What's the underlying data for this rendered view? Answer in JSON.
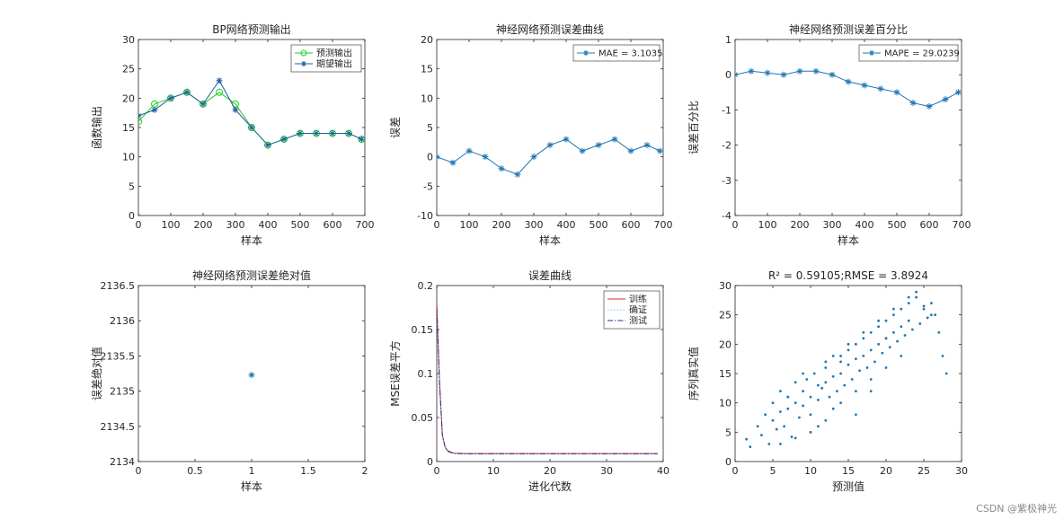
{
  "watermark": "CSDN @紫极神光",
  "chart_data": [
    {
      "type": "line",
      "title": "BP网络预测输出",
      "xlabel": "样本",
      "ylabel": "函数输出",
      "xlim": [
        0,
        700
      ],
      "ylim": [
        0,
        30
      ],
      "xticks": [
        "0",
        "100",
        "200",
        "300",
        "400",
        "500",
        "600",
        "700"
      ],
      "yticks": [
        "0",
        "5",
        "10",
        "15",
        "20",
        "25",
        "30"
      ],
      "legend": "top-right",
      "series": [
        {
          "name": "预测输出",
          "color": "#22cc22",
          "marker": "circle",
          "x": [
            0,
            50,
            100,
            150,
            200,
            250,
            300,
            350,
            400,
            450,
            500,
            550,
            600,
            650,
            690
          ],
          "y": [
            16,
            19,
            20,
            21,
            19,
            21,
            19,
            15,
            12,
            13,
            14,
            14,
            14,
            14,
            13
          ]
        },
        {
          "name": "期望输出",
          "color": "#1f5fa0",
          "marker": "star",
          "x": [
            0,
            50,
            100,
            150,
            200,
            250,
            300,
            350,
            400,
            450,
            500,
            550,
            600,
            650,
            690
          ],
          "y": [
            17,
            18,
            20,
            21,
            19,
            23,
            18,
            15,
            12,
            13,
            14,
            14,
            14,
            14,
            13
          ]
        }
      ]
    },
    {
      "type": "line",
      "title": "神经网络预测误差曲线",
      "xlabel": "样本",
      "ylabel": "误差",
      "xlim": [
        0,
        700
      ],
      "ylim": [
        -10,
        20
      ],
      "xticks": [
        "0",
        "100",
        "200",
        "300",
        "400",
        "500",
        "600",
        "700"
      ],
      "yticks": [
        "-10",
        "-5",
        "0",
        "5",
        "10",
        "15",
        "20"
      ],
      "legend": "top-right",
      "series": [
        {
          "name": "MAE = 3.1035",
          "color": "#1f77b4",
          "marker": "star",
          "x": [
            0,
            50,
            100,
            150,
            200,
            250,
            300,
            350,
            400,
            450,
            500,
            550,
            600,
            650,
            690
          ],
          "y": [
            0,
            -1,
            1,
            0,
            -2,
            -3,
            0,
            2,
            3,
            1,
            2,
            3,
            1,
            2,
            1
          ]
        }
      ]
    },
    {
      "type": "line",
      "title": "神经网络预测误差百分比",
      "xlabel": "样本",
      "ylabel": "误差百分比",
      "xlim": [
        0,
        700
      ],
      "ylim": [
        -4,
        1
      ],
      "xticks": [
        "0",
        "100",
        "200",
        "300",
        "400",
        "500",
        "600",
        "700"
      ],
      "yticks": [
        "-4",
        "-3",
        "-2",
        "-1",
        "0",
        "1"
      ],
      "legend": "top-right",
      "series": [
        {
          "name": "MAPE = 29.0239",
          "color": "#1f77b4",
          "marker": "star",
          "x": [
            0,
            50,
            100,
            150,
            200,
            250,
            300,
            350,
            400,
            450,
            500,
            550,
            600,
            650,
            690
          ],
          "y": [
            0,
            0.1,
            0.05,
            0,
            0.1,
            0.1,
            0,
            -0.2,
            -0.3,
            -0.4,
            -0.5,
            -0.8,
            -0.9,
            -0.7,
            -0.5
          ]
        }
      ]
    },
    {
      "type": "scatter",
      "title": "神经网络预测误差绝对值",
      "xlabel": "样本",
      "ylabel": "误差绝对值",
      "xlim": [
        0,
        2
      ],
      "ylim": [
        2134,
        2136.5
      ],
      "xticks": [
        "0",
        "0.5",
        "1",
        "1.5",
        "2"
      ],
      "yticks": [
        "2134",
        "2134.5",
        "2135",
        "2135.5",
        "2136",
        "2136.5"
      ],
      "series": [
        {
          "color": "#1f77b4",
          "marker": "star",
          "x": [
            1
          ],
          "y": [
            2135.23
          ]
        }
      ]
    },
    {
      "type": "line",
      "title": "误差曲线",
      "xlabel": "进化代数",
      "ylabel": "MSE误差平方",
      "xlim": [
        0,
        40
      ],
      "ylim": [
        0,
        0.2
      ],
      "xticks": [
        "0",
        "10",
        "20",
        "30",
        "40"
      ],
      "yticks": [
        "0",
        "0.05",
        "0.1",
        "0.15",
        "0.2"
      ],
      "legend": "top-right",
      "series": [
        {
          "name": "训练",
          "color": "#d62728",
          "dash": "solid",
          "x": [
            0,
            0.5,
            1,
            1.5,
            2,
            3,
            5,
            10,
            15,
            20,
            25,
            30,
            35,
            39
          ],
          "y": [
            0.18,
            0.09,
            0.03,
            0.016,
            0.012,
            0.0095,
            0.009,
            0.009,
            0.009,
            0.009,
            0.009,
            0.009,
            0.009,
            0.009
          ]
        },
        {
          "name": "确证",
          "color": "#7fbfff",
          "dash": "dotted",
          "x": [
            0,
            0.5,
            1,
            1.5,
            2,
            3,
            5,
            10,
            15,
            20,
            25,
            30,
            35,
            39
          ],
          "y": [
            0.17,
            0.085,
            0.028,
            0.015,
            0.011,
            0.009,
            0.0085,
            0.0085,
            0.0085,
            0.0085,
            0.0085,
            0.0085,
            0.0085,
            0.0085
          ]
        },
        {
          "name": "测试",
          "color": "#3a2a80",
          "dash": "dashdot",
          "x": [
            0,
            0.5,
            1,
            1.5,
            2,
            3,
            5,
            10,
            15,
            20,
            25,
            30,
            35,
            39
          ],
          "y": [
            0.175,
            0.088,
            0.029,
            0.016,
            0.0115,
            0.0092,
            0.0088,
            0.0088,
            0.0088,
            0.0088,
            0.0088,
            0.0088,
            0.0088,
            0.0088
          ]
        }
      ]
    },
    {
      "type": "scatter",
      "title": "R² = 0.59105;RMSE = 3.8924",
      "xlabel": "预测值",
      "ylabel": "序列真实值",
      "xlim": [
        0,
        30
      ],
      "ylim": [
        0,
        30
      ],
      "xticks": [
        "0",
        "5",
        "10",
        "15",
        "20",
        "25",
        "30"
      ],
      "yticks": [
        "0",
        "5",
        "10",
        "15",
        "20",
        "25",
        "30"
      ],
      "series": [
        {
          "color": "#1f77b4",
          "marker": "dot",
          "x": [
            1.5,
            2,
            3,
            3.5,
            4,
            4.5,
            5,
            5,
            5.5,
            6,
            6,
            6.5,
            7,
            7,
            7.5,
            8,
            8,
            8.5,
            9,
            9,
            9.5,
            10,
            10,
            10.5,
            11,
            11,
            11.5,
            12,
            12,
            12.5,
            13,
            13,
            13.5,
            14,
            14,
            14.5,
            15,
            15,
            15.5,
            16,
            16,
            16.5,
            17,
            17,
            17.5,
            18,
            18,
            18.5,
            19,
            19,
            19.5,
            20,
            20,
            20.5,
            21,
            21,
            21.5,
            22,
            22,
            22.5,
            23,
            23,
            23.5,
            24,
            24.5,
            25,
            25.5,
            26,
            26.5,
            27,
            27.5,
            28,
            12,
            14,
            16,
            18,
            20,
            22,
            10,
            8,
            6,
            15,
            17,
            19,
            21,
            13,
            11,
            9,
            7,
            24,
            26,
            23,
            25,
            16,
            18,
            14,
            12,
            20
          ],
          "y": [
            3.8,
            2.5,
            6,
            4.5,
            8,
            3,
            10,
            7,
            5.5,
            12,
            8.5,
            6,
            11,
            9,
            4.2,
            13.5,
            10,
            7.5,
            12,
            9.5,
            14,
            11,
            8,
            15,
            13,
            10.5,
            12.5,
            16,
            13.5,
            11,
            18,
            14.5,
            12,
            17,
            15,
            13,
            19,
            16.5,
            14,
            20,
            17.5,
            15.5,
            21,
            18,
            16,
            22,
            19,
            17,
            23,
            20,
            18.5,
            24,
            21,
            19.5,
            25,
            22,
            20.5,
            26,
            23,
            21.5,
            27,
            24,
            22.5,
            28,
            23.5,
            26,
            24.5,
            27,
            25,
            22,
            18,
            15,
            7,
            10,
            12,
            14,
            16,
            18,
            5,
            4,
            3,
            20,
            22,
            24,
            26,
            9,
            6,
            15,
            11,
            28.9,
            25,
            28,
            26.5,
            8,
            12,
            18,
            17,
            21
          ]
        }
      ]
    }
  ]
}
